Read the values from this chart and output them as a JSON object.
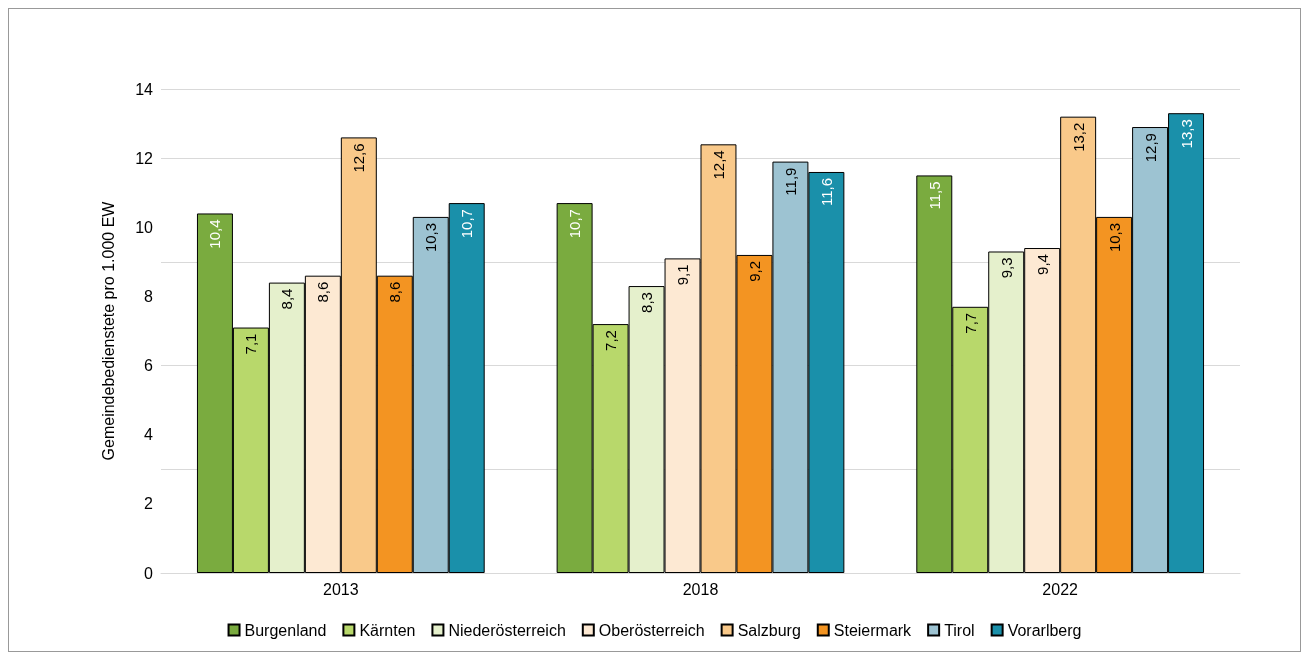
{
  "chart_data": {
    "type": "bar",
    "ylabel": "Gemeindebedienstete pro 1.000 EW",
    "categories": [
      "2013",
      "2018",
      "2022"
    ],
    "series": [
      {
        "name": "Burgenland",
        "color": "#7aab3f",
        "values": [
          10.4,
          10.7,
          11.5
        ],
        "value_labels": [
          "10,4",
          "10,7",
          "11,5"
        ]
      },
      {
        "name": "Kärnten",
        "color": "#b8d86b",
        "values": [
          7.1,
          7.2,
          7.7
        ],
        "value_labels": [
          "7,1",
          "7,2",
          "7,7"
        ]
      },
      {
        "name": "Niederösterreich",
        "color": "#e5f0cc",
        "values": [
          8.4,
          8.3,
          9.3
        ],
        "value_labels": [
          "8,4",
          "8,3",
          "9,3"
        ]
      },
      {
        "name": "Oberösterreich",
        "color": "#fde9d3",
        "values": [
          8.6,
          9.1,
          9.4
        ],
        "value_labels": [
          "8,6",
          "9,1",
          "9,4"
        ]
      },
      {
        "name": "Salzburg",
        "color": "#f9c98a",
        "values": [
          12.6,
          12.4,
          13.2
        ],
        "value_labels": [
          "12,6",
          "12,4",
          "13,2"
        ]
      },
      {
        "name": "Steiermark",
        "color": "#f39422",
        "values": [
          8.6,
          9.2,
          10.3
        ],
        "value_labels": [
          "8,6",
          "9,2",
          "10,3"
        ]
      },
      {
        "name": "Tirol",
        "color": "#9dc3d2",
        "values": [
          10.3,
          11.9,
          12.9
        ],
        "value_labels": [
          "10,3",
          "11,9",
          "12,9"
        ]
      },
      {
        "name": "Vorarlberg",
        "color": "#1a90aa",
        "values": [
          10.7,
          11.6,
          13.3
        ],
        "value_labels": [
          "10,7",
          "11,6",
          "13,3"
        ]
      }
    ],
    "ylim": [
      0,
      14
    ],
    "yticks": [
      0,
      2,
      4,
      6,
      8,
      10,
      12,
      14
    ],
    "grid": "y",
    "legend": "bottom"
  }
}
